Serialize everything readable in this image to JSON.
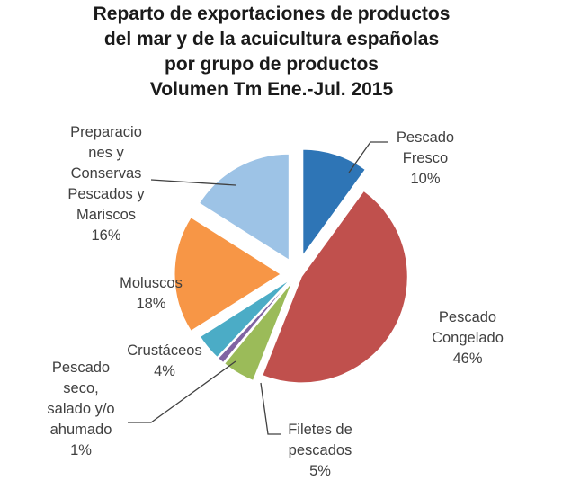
{
  "chart_data": {
    "type": "pie",
    "title_lines": [
      "Reparto de exportaciones de productos",
      "del mar y de la acuicultura españolas",
      "por grupo de productos",
      "Volumen Tm Ene.-Jul. 2015"
    ],
    "slices": [
      {
        "label_lines": [
          "Pescado",
          "Fresco"
        ],
        "value": 10,
        "display": "10%",
        "color": "#2E75B6"
      },
      {
        "label_lines": [
          "Pescado",
          "Congelado"
        ],
        "value": 46,
        "display": "46%",
        "color": "#C0504D"
      },
      {
        "label_lines": [
          "Filetes de",
          "pescados"
        ],
        "value": 5,
        "display": "5%",
        "color": "#9BBB59"
      },
      {
        "label_lines": [
          "Pescado",
          "seco,",
          "salado y/o",
          "ahumado"
        ],
        "value": 1,
        "display": "1%",
        "color": "#8064A2"
      },
      {
        "label_lines": [
          "Crustáceos"
        ],
        "value": 4,
        "display": "4%",
        "color": "#4BACC6"
      },
      {
        "label_lines": [
          "Moluscos"
        ],
        "value": 18,
        "display": "18%",
        "color": "#F79646"
      },
      {
        "label_lines": [
          "Preparacio",
          "nes y",
          "Conservas",
          "Pescados y",
          "Mariscos"
        ],
        "value": 16,
        "display": "16%",
        "color": "#9DC3E6"
      }
    ],
    "start": "top (12 o'clock), clockwise",
    "exploded": true,
    "legend": "none (data labels)"
  }
}
